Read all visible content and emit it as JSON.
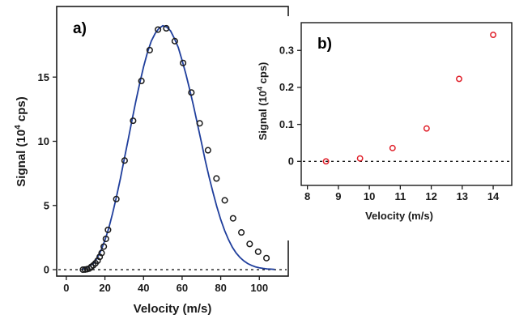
{
  "chart_data": [
    {
      "type": "scatter",
      "panel_label": "a)",
      "xlabel": "Velocity (m/s)",
      "ylabel": "Signal (10",
      "ylabel_sup": "4",
      "ylabel_tail": " cps)",
      "xlim": [
        -5,
        115
      ],
      "ylim": [
        -0.5,
        20.5
      ],
      "xticks": [
        0,
        20,
        40,
        60,
        80,
        100
      ],
      "yticks": [
        0,
        5,
        10,
        15
      ],
      "baseline_y": 0,
      "series": [
        {
          "kind": "points",
          "marker": "open-circle",
          "color": "#1a1a1a",
          "x": [
            8.6,
            9.7,
            10.8,
            11.9,
            12.9,
            14.0,
            15.1,
            16.2,
            17.3,
            18.3,
            19.4,
            20.5,
            21.6,
            25.9,
            30.2,
            34.6,
            38.9,
            43.2,
            47.5,
            51.8,
            56.2,
            60.5,
            64.8,
            69.1,
            73.4,
            77.8,
            82.1,
            86.4,
            90.7,
            95.0,
            99.4,
            103.7
          ],
          "y": [
            0.0,
            0.008,
            0.04,
            0.09,
            0.22,
            0.34,
            0.5,
            0.7,
            1.0,
            1.3,
            1.8,
            2.4,
            3.1,
            5.5,
            8.5,
            11.6,
            14.7,
            17.1,
            18.7,
            18.8,
            17.8,
            16.1,
            13.8,
            11.4,
            9.3,
            7.1,
            5.4,
            4.0,
            2.9,
            2.0,
            1.4,
            0.9
          ]
        },
        {
          "kind": "line",
          "color": "#1f3e9c",
          "x": [
            8,
            10,
            12,
            14,
            16,
            18,
            20,
            22,
            24,
            26,
            28,
            30,
            32,
            34,
            36,
            38,
            40,
            42,
            44,
            46,
            48,
            50,
            52,
            54,
            56,
            58,
            60,
            62,
            64,
            66,
            68,
            70,
            72,
            74,
            76,
            78,
            80,
            82,
            84,
            86,
            88,
            90,
            92,
            94,
            96,
            98,
            100,
            102,
            104,
            106,
            108
          ],
          "y": [
            0.0,
            0.14,
            0.28,
            0.48,
            0.9,
            1.5,
            2.3,
            3.25,
            4.4,
            5.7,
            7.1,
            8.6,
            10.1,
            11.6,
            13.1,
            14.5,
            15.8,
            16.9,
            17.8,
            18.4,
            18.8,
            19.0,
            18.9,
            18.6,
            18.0,
            17.3,
            16.3,
            15.2,
            14.0,
            12.7,
            11.3,
            9.9,
            8.5,
            7.2,
            6.0,
            4.9,
            3.9,
            3.05,
            2.35,
            1.75,
            1.3,
            0.95,
            0.68,
            0.48,
            0.33,
            0.22,
            0.15,
            0.1,
            0.06,
            0.04,
            0.02
          ]
        }
      ]
    },
    {
      "type": "scatter",
      "panel_label": "b)",
      "xlabel": "Velocity (m/s)",
      "ylabel": "Signal (10",
      "ylabel_sup": "4",
      "ylabel_tail": " cps)",
      "xlim": [
        7.8,
        14.6
      ],
      "ylim": [
        -0.065,
        0.375
      ],
      "xticks": [
        8,
        9,
        10,
        11,
        12,
        13,
        14
      ],
      "yticks": [
        0,
        0.1,
        0.2,
        0.3
      ],
      "ytick_labels": [
        "0",
        "0.1",
        "0.2",
        "0.3"
      ],
      "baseline_y": 0,
      "series": [
        {
          "kind": "points",
          "marker": "open-circle",
          "color": "#e0202a",
          "x": [
            8.6,
            9.7,
            10.75,
            11.85,
            12.9,
            14.0
          ],
          "y": [
            0.0,
            0.008,
            0.036,
            0.089,
            0.223,
            0.342
          ]
        }
      ]
    }
  ]
}
